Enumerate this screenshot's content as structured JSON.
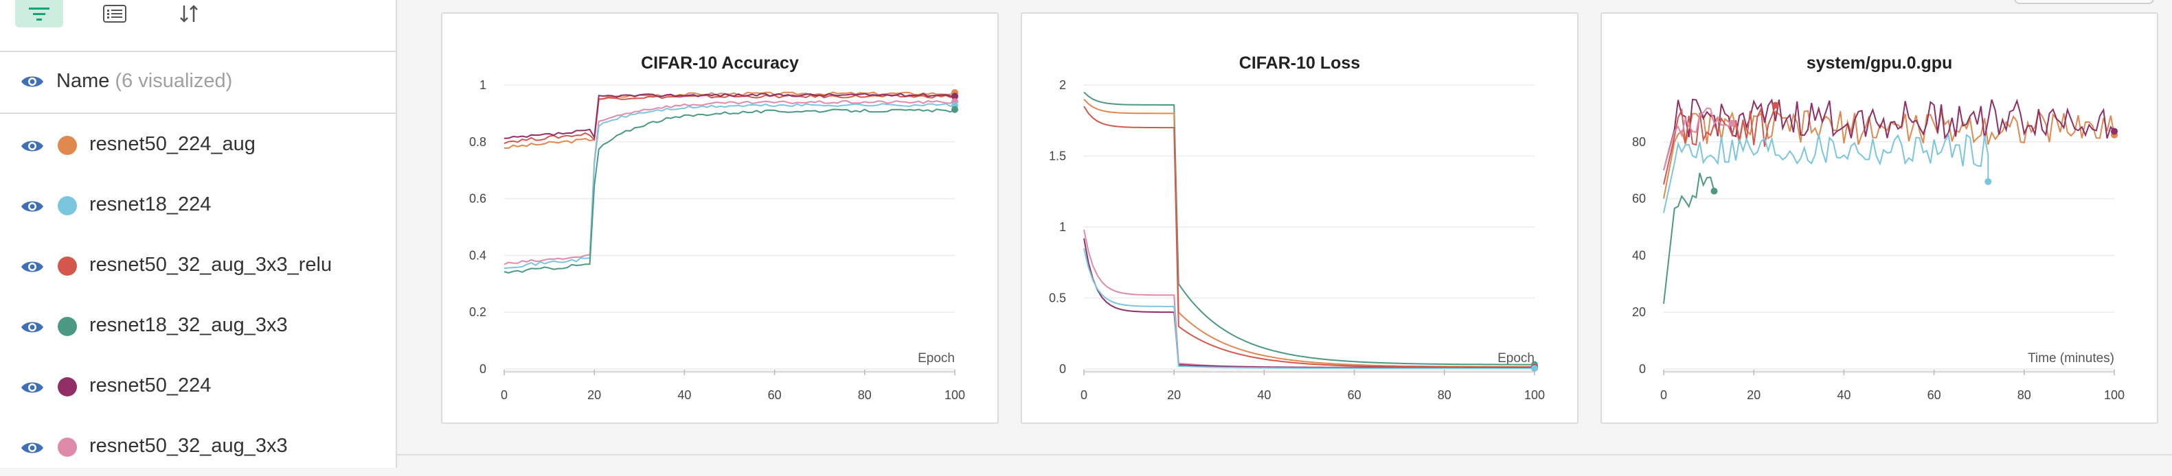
{
  "colors": {
    "eye": "#3f6fb5",
    "accent_bg": "#cdeede",
    "accent_fg": "#13a37a"
  },
  "toolbar": {
    "buttons": [
      {
        "icon": "filter-icon",
        "active": true
      },
      {
        "icon": "list-icon",
        "active": false
      },
      {
        "icon": "sort-icon",
        "active": false
      }
    ]
  },
  "runs_header": {
    "label": "Name",
    "sub": "(6 visualized)"
  },
  "runs": [
    {
      "name": "resnet50_224_aug",
      "color": "#e0884e"
    },
    {
      "name": "resnet18_224",
      "color": "#7ac6df"
    },
    {
      "name": "resnet50_32_aug_3x3_relu",
      "color": "#d4574e"
    },
    {
      "name": "resnet18_32_aug_3x3",
      "color": "#4b9883"
    },
    {
      "name": "resnet50_224",
      "color": "#902e66"
    },
    {
      "name": "resnet50_32_aug_3x3",
      "color": "#e08aaa"
    }
  ],
  "chart_data": [
    {
      "type": "line",
      "title": "CIFAR-10 Accuracy",
      "xlabel": "Epoch",
      "xlim": [
        0,
        100
      ],
      "ylim": [
        0,
        1
      ],
      "xticks": [
        "0",
        "20",
        "40",
        "60",
        "80",
        "100"
      ],
      "yticks": [
        "0",
        "0.2",
        "0.4",
        "0.6",
        "0.8",
        "1"
      ],
      "grid": true,
      "series": [
        {
          "run": 0,
          "start": 0.78,
          "jump_to": 0.95,
          "end": 0.97
        },
        {
          "run": 2,
          "start": 0.8,
          "jump_to": 0.95,
          "end": 0.96
        },
        {
          "run": 4,
          "start": 0.81,
          "jump_to": 0.96,
          "end": 0.965
        },
        {
          "run": 5,
          "start": 0.37,
          "jump_to": 0.86,
          "end": 0.94
        },
        {
          "run": 1,
          "start": 0.36,
          "jump_to": 0.85,
          "end": 0.93
        },
        {
          "run": 3,
          "start": 0.34,
          "jump_to": 0.76,
          "end": 0.91
        }
      ]
    },
    {
      "type": "line",
      "title": "CIFAR-10 Loss",
      "xlabel": "Epoch",
      "xlim": [
        0,
        100
      ],
      "ylim": [
        0,
        2
      ],
      "xticks": [
        "0",
        "20",
        "40",
        "60",
        "80",
        "100"
      ],
      "yticks": [
        "0",
        "0.5",
        "1",
        "1.5",
        "2"
      ],
      "grid": true,
      "series": [
        {
          "run": 3,
          "start": 1.95,
          "plateau": 1.86,
          "drop_to": 0.6,
          "end": 0.03
        },
        {
          "run": 0,
          "start": 1.9,
          "plateau": 1.8,
          "drop_to": 0.4,
          "end": 0.015
        },
        {
          "run": 2,
          "start": 1.85,
          "plateau": 1.7,
          "drop_to": 0.3,
          "end": 0.01
        },
        {
          "run": 5,
          "start": 0.98,
          "plateau": 0.52,
          "drop_to": 0.04,
          "end": 0.005
        },
        {
          "run": 4,
          "start": 0.92,
          "plateau": 0.4,
          "drop_to": 0.03,
          "end": 0.01
        },
        {
          "run": 1,
          "start": 0.85,
          "plateau": 0.44,
          "drop_to": 0.02,
          "end": 0.005
        }
      ]
    },
    {
      "type": "line",
      "title": "system/gpu.0.gpu",
      "xlabel": "Time (minutes)",
      "xlim": [
        0,
        100
      ],
      "ylim": [
        0,
        100
      ],
      "xticks": [
        "0",
        "20",
        "40",
        "60",
        "80",
        "100"
      ],
      "yticks": [
        "0",
        "20",
        "40",
        "60",
        "80"
      ],
      "grid": true,
      "series": [
        {
          "run": 0,
          "start_y": 60,
          "level": 85,
          "amp": 6,
          "x_end": 100
        },
        {
          "run": 4,
          "start_y": 70,
          "level": 88,
          "amp": 7,
          "x_end": 100
        },
        {
          "run": 2,
          "start_y": 65,
          "level": 86,
          "amp": 8,
          "x_end": 25
        },
        {
          "run": 5,
          "start_y": 70,
          "level": 87,
          "amp": 5,
          "x_end": 16
        },
        {
          "run": 3,
          "start_y": 23,
          "level": 65,
          "amp": 8,
          "x_end": 12
        },
        {
          "run": 1,
          "start_y": 55,
          "level": 77,
          "amp": 6,
          "x_end": 72,
          "last": 66
        }
      ]
    }
  ]
}
